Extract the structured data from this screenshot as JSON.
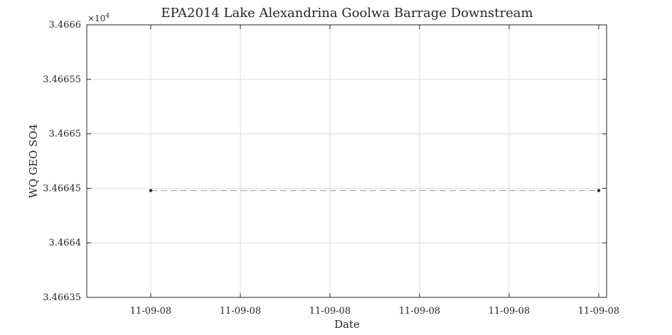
{
  "chart_data": {
    "type": "line",
    "title": "EPA2014 Lake Alexandrina Goolwa Barrage Downstream",
    "xlabel": "Date",
    "ylabel": "WQ GEO SO4",
    "y_multiplier": {
      "base": "×10",
      "exponent": "4"
    },
    "x_tick_labels": [
      "11-09-08",
      "11-09-08",
      "11-09-08",
      "11-09-08",
      "11-09-08",
      "11-09-08"
    ],
    "y_tick_labels": [
      "3.46635",
      "3.4664",
      "3.46645",
      "3.4665",
      "3.46655",
      "3.4666"
    ],
    "y_ticks": [
      3.46635,
      3.4664,
      3.46645,
      3.4665,
      3.46655,
      3.4666
    ],
    "ylim": [
      3.46635,
      3.4666
    ],
    "grid": true,
    "series": [
      {
        "x": [
          "11-09-08",
          "11-09-08"
        ],
        "y": [
          3.466448,
          3.466448
        ],
        "line_style": "dashed",
        "line_color": "#aaaaaa",
        "marker_color": "#262626"
      }
    ]
  }
}
